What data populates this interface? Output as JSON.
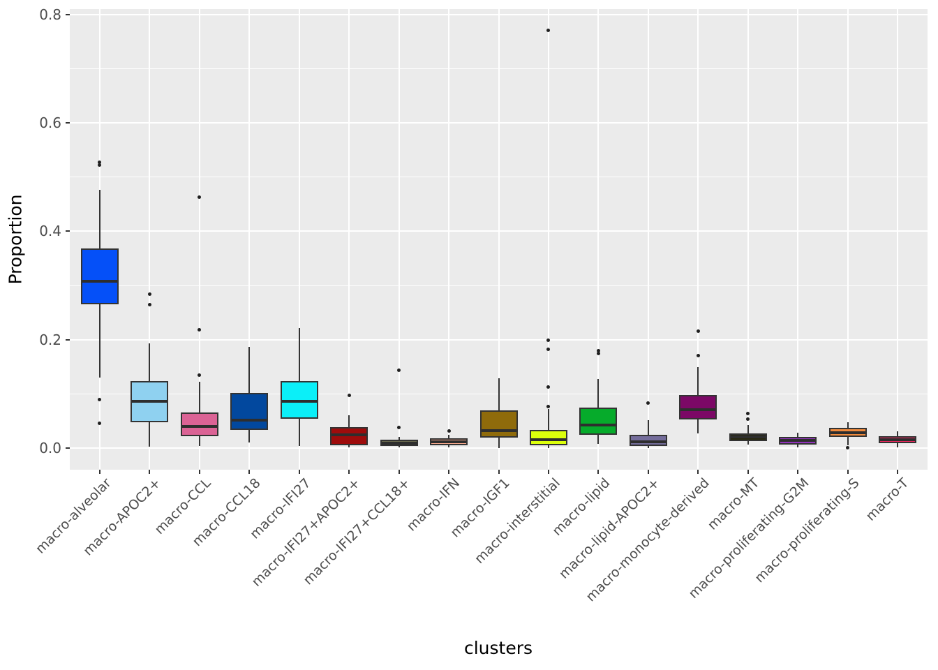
{
  "chart_data": {
    "type": "boxplot",
    "title": "",
    "xlabel": "clusters",
    "ylabel": "Proportion",
    "ylim": [
      -0.04,
      0.81
    ],
    "yticks": [
      0.0,
      0.2,
      0.4,
      0.6,
      0.8
    ],
    "ytick_labels": [
      "0.0",
      "0.2",
      "0.4",
      "0.6",
      "0.8"
    ],
    "yticks_minor": [
      0.1,
      0.3,
      0.5,
      0.7
    ],
    "grid": "horizontal major+minor white lines, vertical major white line per category, gray panel",
    "legend_position": "none",
    "categories": [
      "macro-alveolar",
      "macro-APOC2+",
      "macro-CCL",
      "macro-CCL18",
      "macro-IFI27",
      "macro-IFI27+APOC2+",
      "macro-IFI27+CCL18+",
      "macro-IFN",
      "macro-IGF1",
      "macro-interstitial",
      "macro-lipid",
      "macro-lipid-APOC2+",
      "macro-monocyte-derived",
      "macro-MT",
      "macro-proliferating-G2M",
      "macro-proliferating-S",
      "macro-T"
    ],
    "series": [
      {
        "name": "macro-alveolar",
        "color": "#0550F8",
        "whisker_low": 0.13,
        "q1": 0.265,
        "median": 0.308,
        "q3": 0.368,
        "whisker_high": 0.477,
        "outliers": [
          0.527,
          0.522,
          0.089,
          0.046
        ]
      },
      {
        "name": "macro-APOC2+",
        "color": "#8FD1F0",
        "whisker_low": 0.002,
        "q1": 0.048,
        "median": 0.086,
        "q3": 0.123,
        "whisker_high": 0.193,
        "outliers": [
          0.284,
          0.264
        ]
      },
      {
        "name": "macro-CCL",
        "color": "#DB6395",
        "whisker_low": 0.004,
        "q1": 0.022,
        "median": 0.04,
        "q3": 0.066,
        "whisker_high": 0.122,
        "outliers": [
          0.463,
          0.218,
          0.134
        ]
      },
      {
        "name": "macro-CCL18",
        "color": "#02489E",
        "whisker_low": 0.01,
        "q1": 0.033,
        "median": 0.052,
        "q3": 0.102,
        "whisker_high": 0.187,
        "outliers": []
      },
      {
        "name": "macro-IFI27",
        "color": "#0BEFF8",
        "whisker_low": 0.004,
        "q1": 0.054,
        "median": 0.086,
        "q3": 0.123,
        "whisker_high": 0.222,
        "outliers": []
      },
      {
        "name": "macro-IFI27+APOC2+",
        "color": "#9E0C0C",
        "whisker_low": 0.001,
        "q1": 0.005,
        "median": 0.024,
        "q3": 0.039,
        "whisker_high": 0.061,
        "outliers": [
          0.097
        ]
      },
      {
        "name": "macro-IFI27+CCL18+",
        "color": "#6B6B4E",
        "whisker_low": 0.001,
        "q1": 0.004,
        "median": 0.009,
        "q3": 0.015,
        "whisker_high": 0.021,
        "outliers": [
          0.144,
          0.038
        ]
      },
      {
        "name": "macro-IFN",
        "color": "#F7A98D",
        "whisker_low": 0.001,
        "q1": 0.005,
        "median": 0.011,
        "q3": 0.018,
        "whisker_high": 0.025,
        "outliers": [
          0.032
        ]
      },
      {
        "name": "macro-IGF1",
        "color": "#8F6B0B",
        "whisker_low": 0.0,
        "q1": 0.019,
        "median": 0.032,
        "q3": 0.07,
        "whisker_high": 0.129,
        "outliers": []
      },
      {
        "name": "macro-interstitial",
        "color": "#DCFF0C",
        "whisker_low": 0.0,
        "q1": 0.005,
        "median": 0.016,
        "q3": 0.033,
        "whisker_high": 0.072,
        "outliers": [
          0.771,
          0.199,
          0.182,
          0.112,
          0.077
        ]
      },
      {
        "name": "macro-lipid",
        "color": "#06AB2B",
        "whisker_low": 0.007,
        "q1": 0.025,
        "median": 0.042,
        "q3": 0.074,
        "whisker_high": 0.127,
        "outliers": [
          0.18,
          0.174
        ]
      },
      {
        "name": "macro-lipid-APOC2+",
        "color": "#746D9B",
        "whisker_low": 0.0,
        "q1": 0.004,
        "median": 0.012,
        "q3": 0.025,
        "whisker_high": 0.052,
        "outliers": [
          0.083
        ]
      },
      {
        "name": "macro-monocyte-derived",
        "color": "#7C0866",
        "whisker_low": 0.027,
        "q1": 0.053,
        "median": 0.071,
        "q3": 0.098,
        "whisker_high": 0.149,
        "outliers": [
          0.216,
          0.171
        ]
      },
      {
        "name": "macro-MT",
        "color": "#28280F",
        "whisker_low": 0.006,
        "q1": 0.013,
        "median": 0.02,
        "q3": 0.027,
        "whisker_high": 0.042,
        "outliers": [
          0.064,
          0.054
        ]
      },
      {
        "name": "macro-proliferating-G2M",
        "color": "#9232BE",
        "whisker_low": 0.001,
        "q1": 0.007,
        "median": 0.014,
        "q3": 0.02,
        "whisker_high": 0.028,
        "outliers": []
      },
      {
        "name": "macro-proliferating-S",
        "color": "#F08A3C",
        "whisker_low": 0.005,
        "q1": 0.02,
        "median": 0.028,
        "q3": 0.037,
        "whisker_high": 0.047,
        "outliers": [
          0.0
        ]
      },
      {
        "name": "macro-T",
        "color": "#F2265E",
        "whisker_low": 0.001,
        "q1": 0.009,
        "median": 0.015,
        "q3": 0.022,
        "whisker_high": 0.031,
        "outliers": []
      }
    ],
    "style": {
      "panel_bg": "#EBEBEB",
      "grid_color": "#FFFFFF",
      "box_edge_color": "#333333",
      "median_color": "#2E2E2E",
      "outlier_color": "#1F1F1F",
      "axis_text_color": "#4D4D4D",
      "axis_title_color": "#000000"
    }
  }
}
